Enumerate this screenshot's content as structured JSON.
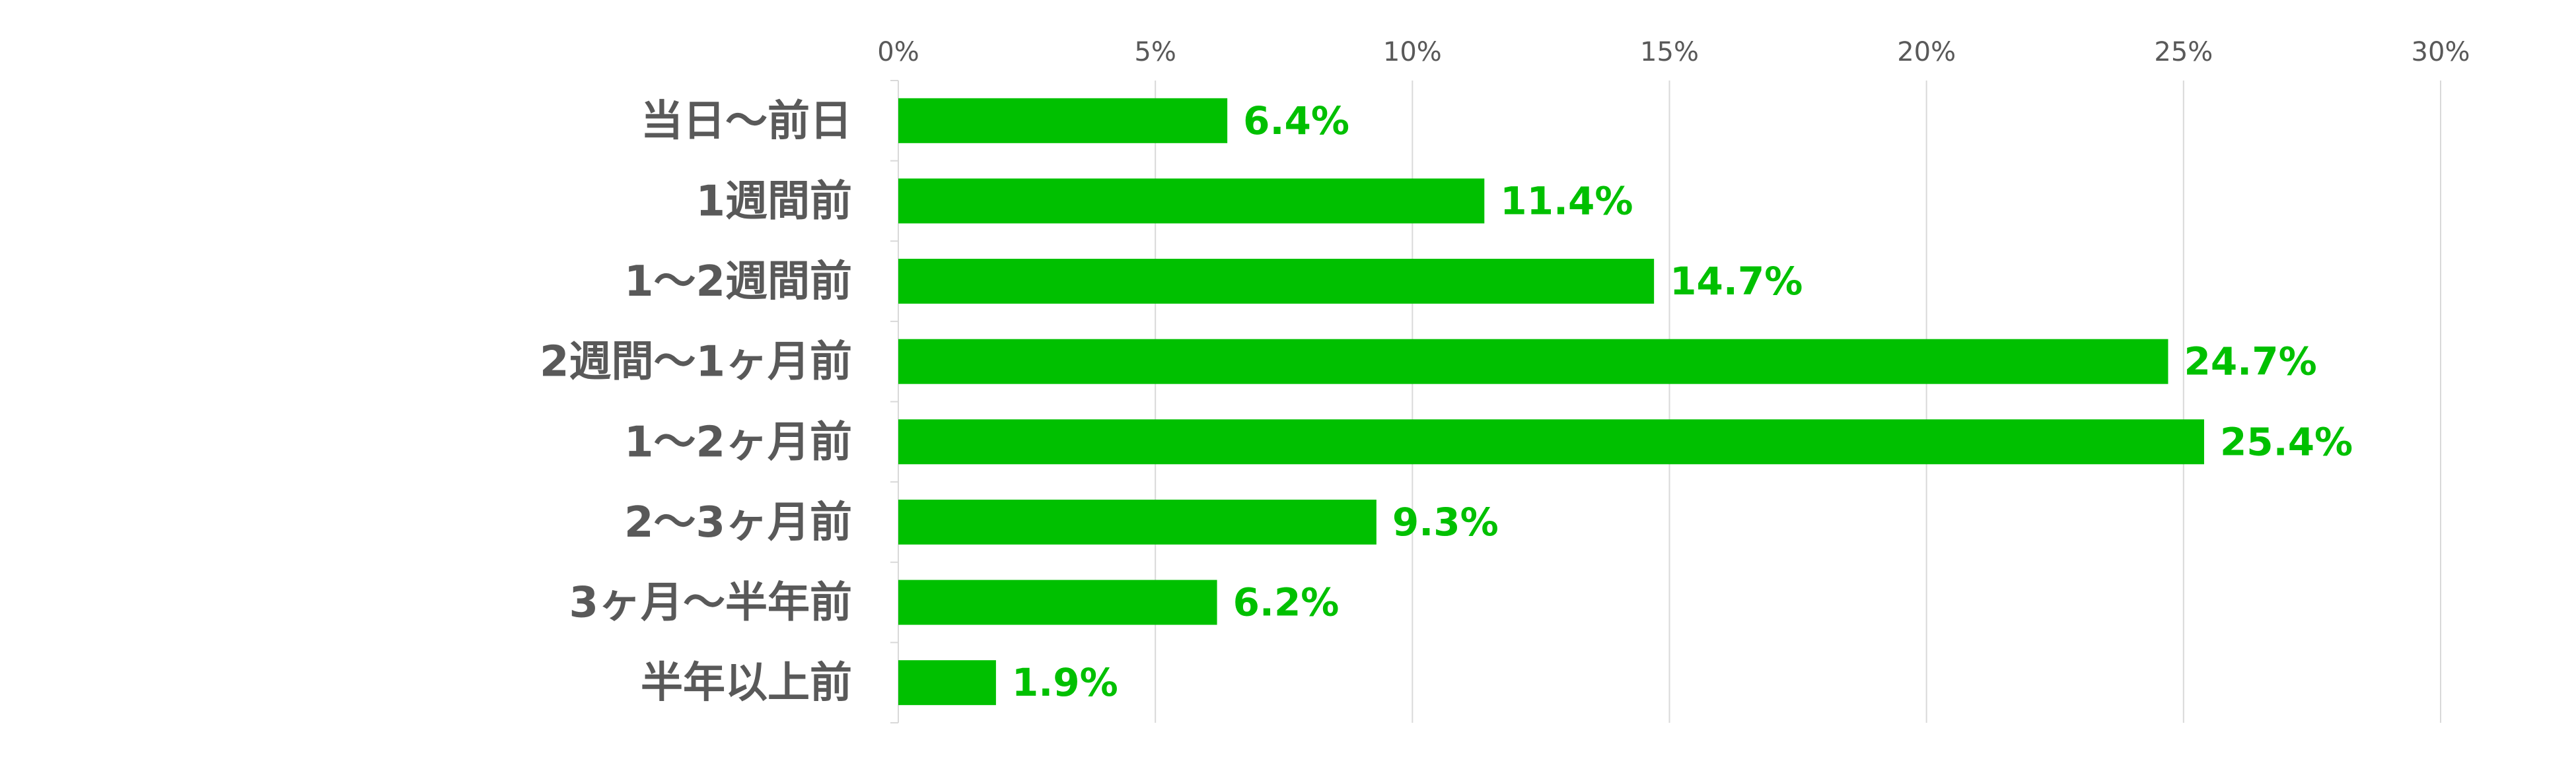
{
  "chart_data": {
    "type": "bar",
    "orientation": "horizontal",
    "categories": [
      "当日～前日",
      "1週間前",
      "1～2週間前",
      "2週間～1ヶ月前",
      "1～2ヶ月前",
      "2～3ヶ月前",
      "3ヶ月～半年前",
      "半年以上前"
    ],
    "values": [
      6.4,
      11.4,
      14.7,
      24.7,
      25.4,
      9.3,
      6.2,
      1.9
    ],
    "value_labels": [
      "6.4%",
      "11.4%",
      "14.7%",
      "24.7%",
      "25.4%",
      "9.3%",
      "6.2%",
      "1.9%"
    ],
    "xlim": [
      0,
      30
    ],
    "x_ticks": [
      0,
      5,
      10,
      15,
      20,
      25,
      30
    ],
    "x_tick_labels": [
      "0%",
      "5%",
      "10%",
      "15%",
      "20%",
      "25%",
      "30%"
    ],
    "x_axis_position": "top",
    "grid": true,
    "legend": "none",
    "title": "",
    "xlabel": "",
    "ylabel": "",
    "colors": {
      "bar": "#00C000",
      "data_label": "#00C000",
      "gridline": "#D9D9D9",
      "axis_text": "#595959"
    }
  }
}
